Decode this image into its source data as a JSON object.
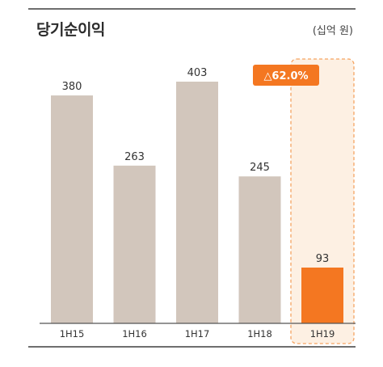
{
  "header": {
    "title": "당기순이익",
    "unit": "(십억 원)"
  },
  "badge": {
    "text": "△62.0%"
  },
  "colors": {
    "bar": "#d2c6bc",
    "highlight": "#f47721",
    "highlight_band": "#fdf0e3",
    "highlight_border": "#f5a462",
    "axis": "#555555"
  },
  "chart_data": {
    "type": "bar",
    "title": "당기순이익",
    "unit": "(십억 원)",
    "categories": [
      "1H15",
      "1H16",
      "1H17",
      "1H18",
      "1H19"
    ],
    "values": [
      380,
      263,
      403,
      245,
      93
    ],
    "highlight_index": 4,
    "ylim": [
      0,
      403
    ],
    "grid": false,
    "legend": "none"
  }
}
